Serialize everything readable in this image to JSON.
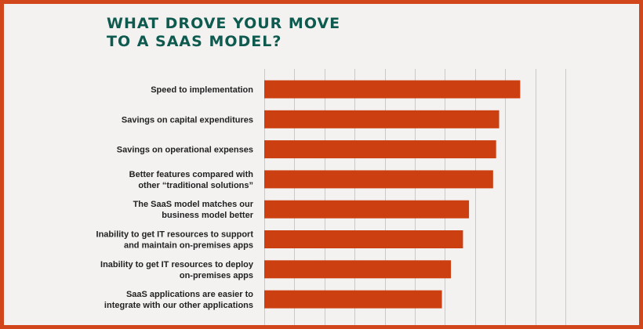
{
  "title": {
    "line1": "WHAT DROVE YOUR MOVE",
    "line2": "TO A SAAS MODEL?"
  },
  "colors": {
    "frame": "#d2461c",
    "background": "#f3f2f1",
    "title": "#0e5a4e",
    "bar": "#cc3f10",
    "grid": "#c9c9c9"
  },
  "chart_data": {
    "type": "bar",
    "orientation": "horizontal",
    "categories": [
      [
        "Speed to implementation"
      ],
      [
        "Savings on capital expenditures"
      ],
      [
        "Savings on operational expenses"
      ],
      [
        "Better features compared with",
        "other “traditional  solutions”"
      ],
      [
        "The SaaS model matches our",
        "business model better"
      ],
      [
        "Inability to get IT resources to support",
        "and maintain on-premises apps"
      ],
      [
        "Inability to get IT resources to deploy",
        "on-premises apps"
      ],
      [
        "SaaS applications are easier to",
        "integrate with our other applications"
      ]
    ],
    "values": [
      85,
      78,
      77,
      76,
      68,
      66,
      62,
      59
    ],
    "xlim": [
      0,
      100
    ],
    "xticks": [
      0,
      10,
      20,
      30,
      40,
      50,
      60,
      70,
      80,
      90,
      100
    ],
    "grid": true,
    "legend": "none"
  }
}
